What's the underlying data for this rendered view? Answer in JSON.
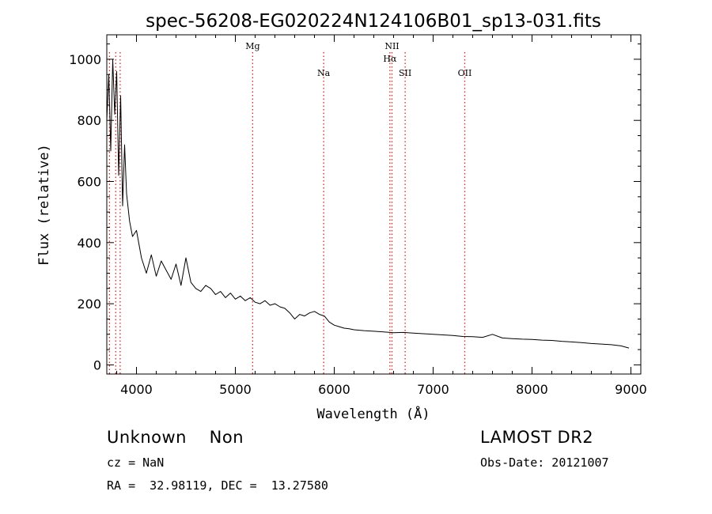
{
  "chart_data": {
    "type": "line",
    "title": "spec-56208-EG020224N124106B01_sp13-031.fits",
    "xlabel": "Wavelength (Å)",
    "ylabel": "Flux (relative)",
    "xlim": [
      3700,
      9100
    ],
    "ylim": [
      -30,
      1080
    ],
    "x_ticks": [
      4000,
      5000,
      6000,
      7000,
      8000,
      9000
    ],
    "y_ticks": [
      0,
      200,
      400,
      600,
      800,
      1000
    ],
    "x_tick_labels": [
      "4000",
      "5000",
      "6000",
      "7000",
      "8000",
      "9000"
    ],
    "y_tick_labels": [
      "0",
      "200",
      "400",
      "600",
      "800",
      "1000"
    ],
    "grid": false,
    "line_color": "#000000",
    "marker_color": "#e02020",
    "series": [
      {
        "x": [
          3700,
          3720,
          3740,
          3760,
          3780,
          3800,
          3820,
          3840,
          3860,
          3880,
          3900,
          3930,
          3960,
          4000,
          4050,
          4100,
          4150,
          4200,
          4250,
          4300,
          4350,
          4400,
          4450,
          4500,
          4550,
          4600,
          4650,
          4700,
          4750,
          4800,
          4850,
          4900,
          4950,
          5000,
          5050,
          5100,
          5150,
          5200,
          5250,
          5300,
          5350,
          5400,
          5450,
          5500,
          5550,
          5600,
          5650,
          5700,
          5750,
          5800,
          5850,
          5900,
          5950,
          6000,
          6050,
          6100,
          6150,
          6200,
          6300,
          6400,
          6500,
          6600,
          6700,
          6800,
          6900,
          7000,
          7100,
          7200,
          7300,
          7400,
          7500,
          7600,
          7700,
          7800,
          7900,
          8000,
          8100,
          8200,
          8300,
          8400,
          8500,
          8600,
          8700,
          8800,
          8900,
          8980
        ],
        "y": [
          800,
          950,
          700,
          1000,
          820,
          960,
          620,
          880,
          520,
          720,
          560,
          470,
          420,
          440,
          350,
          300,
          360,
          290,
          340,
          310,
          280,
          330,
          260,
          350,
          270,
          250,
          240,
          260,
          250,
          230,
          240,
          220,
          235,
          215,
          225,
          210,
          220,
          205,
          200,
          210,
          195,
          200,
          190,
          185,
          170,
          150,
          165,
          160,
          170,
          175,
          165,
          160,
          140,
          130,
          125,
          120,
          118,
          115,
          112,
          110,
          108,
          105,
          106,
          104,
          102,
          100,
          98,
          96,
          93,
          92,
          90,
          100,
          88,
          86,
          84,
          83,
          81,
          80,
          77,
          75,
          73,
          70,
          68,
          66,
          62,
          55
        ]
      }
    ],
    "markers": [
      {
        "label": "Mg",
        "x": 5175,
        "row": 0
      },
      {
        "label": "Na",
        "x": 5893,
        "row": 1
      },
      {
        "label": "NII",
        "x": 6584,
        "row": 0
      },
      {
        "label": "Hα",
        "x": 6563,
        "row": "0b"
      },
      {
        "label": "SII",
        "x": 6717,
        "row": 1
      },
      {
        "label": "OII",
        "x": 7320,
        "row": 1
      },
      {
        "label": "",
        "x": 3727,
        "row": 0
      },
      {
        "label": "",
        "x": 3790,
        "row": 0
      },
      {
        "label": "",
        "x": 3835,
        "row": 0
      }
    ]
  },
  "info": {
    "class_line": "Unknown    Non",
    "survey": "LAMOST DR2",
    "cz": "cz = NaN",
    "obs_date": "Obs-Date: 20121007",
    "coords": "RA =  32.98119, DEC =  13.27580"
  }
}
